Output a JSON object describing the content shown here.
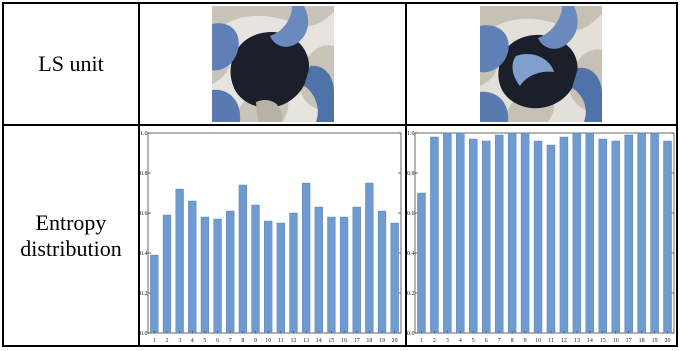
{
  "table": {
    "row1_label": "LS unit",
    "row2_label_line1": "Entropy",
    "row2_label_line2": "distribution"
  },
  "images": [
    {
      "name": "ls-unit-structure-left"
    },
    {
      "name": "ls-unit-structure-right"
    }
  ],
  "colors": {
    "bar": "#6f9bd1",
    "bar_stroke": "#4f79ad",
    "structure_light": "#b8b2a6",
    "structure_blue": "#4f72a8"
  },
  "chart_data": [
    {
      "type": "bar",
      "title": "",
      "xlabel": "",
      "ylabel": "",
      "categories": [
        "1",
        "2",
        "3",
        "4",
        "5",
        "6",
        "7",
        "8",
        "9",
        "10",
        "11",
        "12",
        "13",
        "14",
        "15",
        "16",
        "17",
        "18",
        "19",
        "20"
      ],
      "values": [
        0.39,
        0.59,
        0.72,
        0.66,
        0.58,
        0.57,
        0.61,
        0.74,
        0.64,
        0.56,
        0.55,
        0.6,
        0.75,
        0.63,
        0.58,
        0.58,
        0.63,
        0.75,
        0.61,
        0.55
      ],
      "ylim": [
        0,
        1.0
      ],
      "yticks": [
        "0.0",
        "0.2",
        "0.4",
        "0.6",
        "0.8",
        "1.0"
      ]
    },
    {
      "type": "bar",
      "title": "",
      "xlabel": "",
      "ylabel": "",
      "categories": [
        "1",
        "2",
        "3",
        "4",
        "5",
        "6",
        "7",
        "8",
        "9",
        "10",
        "11",
        "12",
        "13",
        "14",
        "15",
        "16",
        "17",
        "18",
        "19",
        "20"
      ],
      "values": [
        0.7,
        0.98,
        1.0,
        1.0,
        0.97,
        0.96,
        0.99,
        1.0,
        1.0,
        0.96,
        0.94,
        0.98,
        1.0,
        1.0,
        0.97,
        0.96,
        0.99,
        1.0,
        1.0,
        0.96
      ],
      "ylim": [
        0,
        1.0
      ],
      "yticks": [
        "0.0",
        "0.2",
        "0.4",
        "0.6",
        "0.8",
        "1.0"
      ]
    }
  ]
}
